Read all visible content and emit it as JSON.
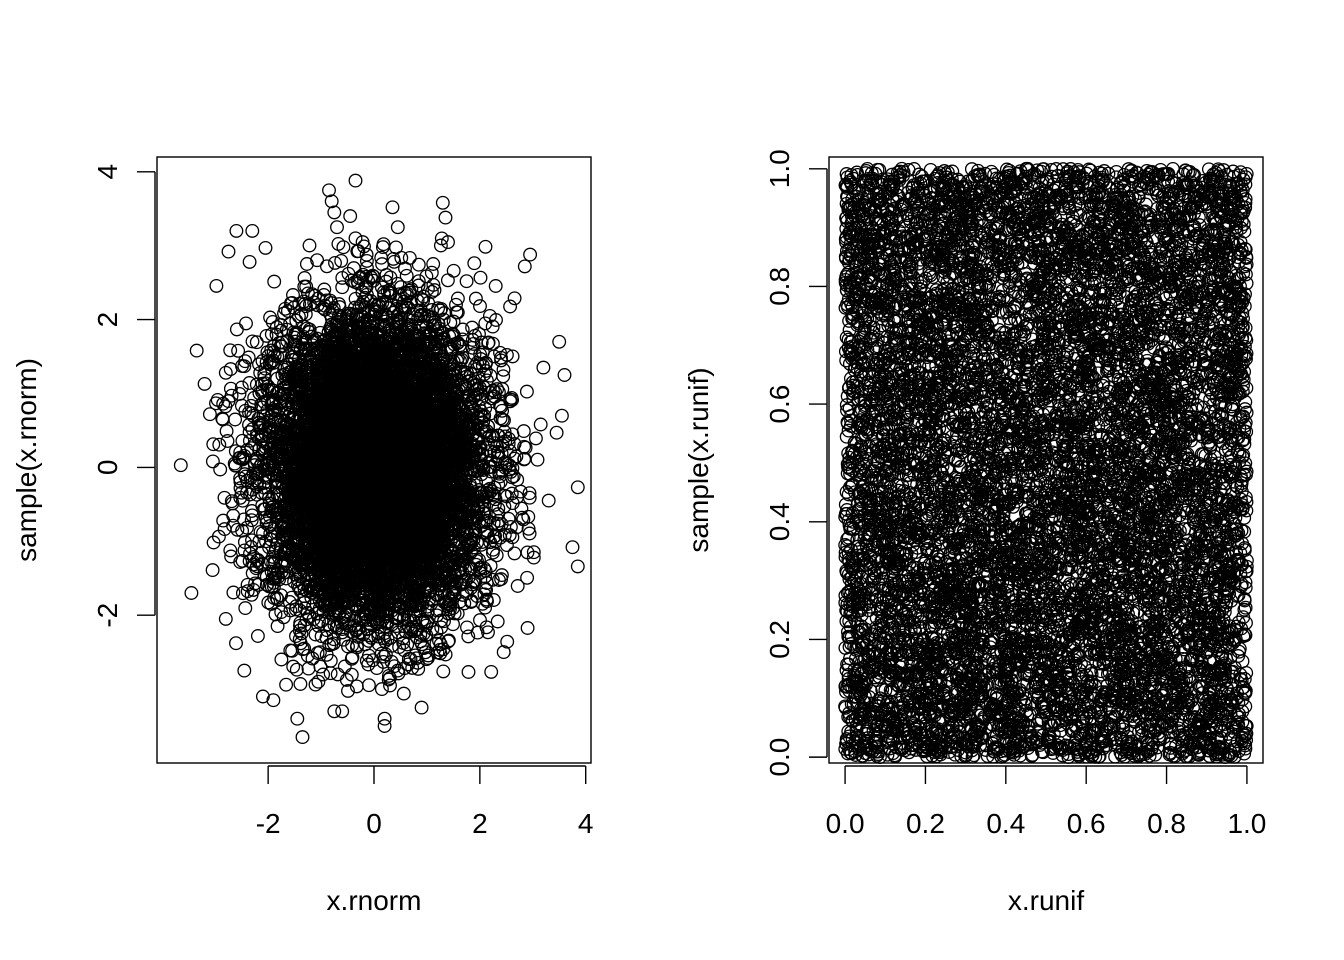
{
  "chart_data": [
    {
      "type": "scatter",
      "title": "",
      "xlabel": "x.rnorm",
      "ylabel": "sample(x.rnorm)",
      "xlim": [
        -4.1,
        4.1
      ],
      "ylim": [
        -4.0,
        4.2
      ],
      "xticks": [
        -2,
        0,
        2,
        4
      ],
      "yticks": [
        -2,
        0,
        2,
        4
      ],
      "xtick_labels": [
        "-2",
        "0",
        "2",
        "4"
      ],
      "ytick_labels": [
        "-2",
        "0",
        "2",
        "4"
      ],
      "grid": false,
      "legend": "none",
      "marker": "open-circle",
      "distribution": {
        "kind": "normal",
        "x_mean": 0,
        "x_sd": 1,
        "y_mean": 0,
        "y_sd": 1,
        "n": 10000
      },
      "outlier_points": {
        "x": [
          -3.65,
          -3.45,
          -3.35,
          -3.2,
          -3.1,
          -3.05,
          -2.85,
          -2.8,
          -2.8,
          -2.75,
          -2.6,
          -2.45,
          -2.35,
          -2.3,
          -2.05,
          -1.35,
          -0.85,
          -0.8,
          -0.75,
          -0.7,
          -0.6,
          -0.35,
          -0.45,
          -0.35,
          0.35,
          0.45,
          1.3,
          1.35,
          1.55,
          1.75,
          2.45,
          2.95,
          2.85,
          3.15,
          3.3,
          3.45,
          3.6,
          3.75,
          3.85,
          3.85,
          3.55,
          3.5,
          3.2,
          2.9,
          0.2,
          0.2,
          -1.45,
          -0.75,
          -1.05,
          -2.1,
          -1.9,
          -1.75,
          0.9,
          0.15,
          0.45,
          0.3
        ],
        "y": [
          0.03,
          -1.7,
          1.58,
          1.13,
          0.72,
          -1.39,
          -0.72,
          -2.05,
          1.28,
          2.92,
          3.2,
          -2.75,
          2.78,
          3.2,
          2.97,
          -3.65,
          3.75,
          3.6,
          3.45,
          3.25,
          -3.3,
          3.88,
          3.4,
          3.1,
          3.52,
          3.25,
          3.58,
          3.38,
          2.2,
          2.52,
          -2.5,
          2.88,
          2.72,
          0.58,
          -0.45,
          0.47,
          1.25,
          -1.08,
          -0.27,
          -1.34,
          0.7,
          1.7,
          1.35,
          -1.15,
          -3.4,
          -3.5,
          -3.4,
          -3.3,
          -2.9,
          -3.1,
          -3.15,
          -2.6,
          -3.25,
          -3.0,
          -2.75,
          -2.85
        ]
      }
    },
    {
      "type": "scatter",
      "title": "",
      "xlabel": "x.runif",
      "ylabel": "sample(x.runif)",
      "xlim": [
        -0.04,
        1.04
      ],
      "ylim": [
        -0.01,
        1.02
      ],
      "xticks": [
        0.0,
        0.2,
        0.4,
        0.6,
        0.8,
        1.0
      ],
      "yticks": [
        0.0,
        0.2,
        0.4,
        0.6,
        0.8,
        1.0
      ],
      "xtick_labels": [
        "0.0",
        "0.2",
        "0.4",
        "0.6",
        "0.8",
        "1.0"
      ],
      "ytick_labels": [
        "0.0",
        "0.2",
        "0.4",
        "0.6",
        "0.8",
        "1.0"
      ],
      "grid": false,
      "legend": "none",
      "marker": "open-circle",
      "distribution": {
        "kind": "uniform",
        "x_min": 0,
        "x_max": 1,
        "y_min": 0,
        "y_max": 1,
        "n": 10000
      }
    }
  ]
}
